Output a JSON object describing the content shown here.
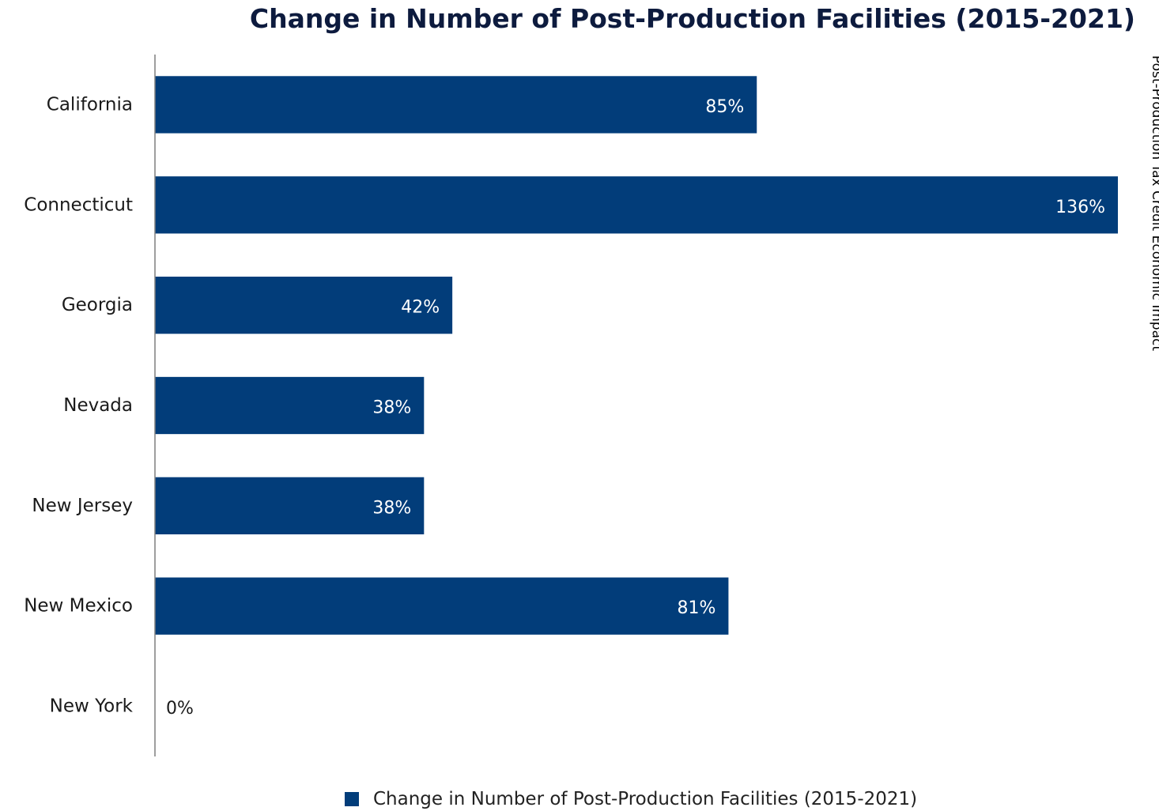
{
  "colors": {
    "bar": "#023d7a",
    "axis": "#7f7f7f",
    "category_text": "#1a1a1a",
    "inside_label_text": "#ffffff",
    "outside_label_text": "#1a1a1a"
  },
  "side_note": "Post-Production Tax Credit  Economic Impact",
  "chart_data": {
    "type": "bar",
    "orientation": "horizontal",
    "title": "Change in Number of Post-Production Facilities (2015-2021)",
    "categories": [
      "California",
      "Connecticut",
      "Georgia",
      "Nevada",
      "New Jersey",
      "New Mexico",
      "New York"
    ],
    "series": [
      {
        "name": "Change in Number of Post-Production Facilities (2015-2021)",
        "values": [
          85,
          136,
          42,
          38,
          38,
          81,
          0
        ]
      }
    ],
    "data_labels": [
      "85%",
      "136%",
      "42%",
      "38%",
      "38%",
      "81%",
      "0%"
    ],
    "value_unit": "%",
    "xlim": [
      0,
      136
    ],
    "grid": false,
    "legend_position": "bottom"
  }
}
